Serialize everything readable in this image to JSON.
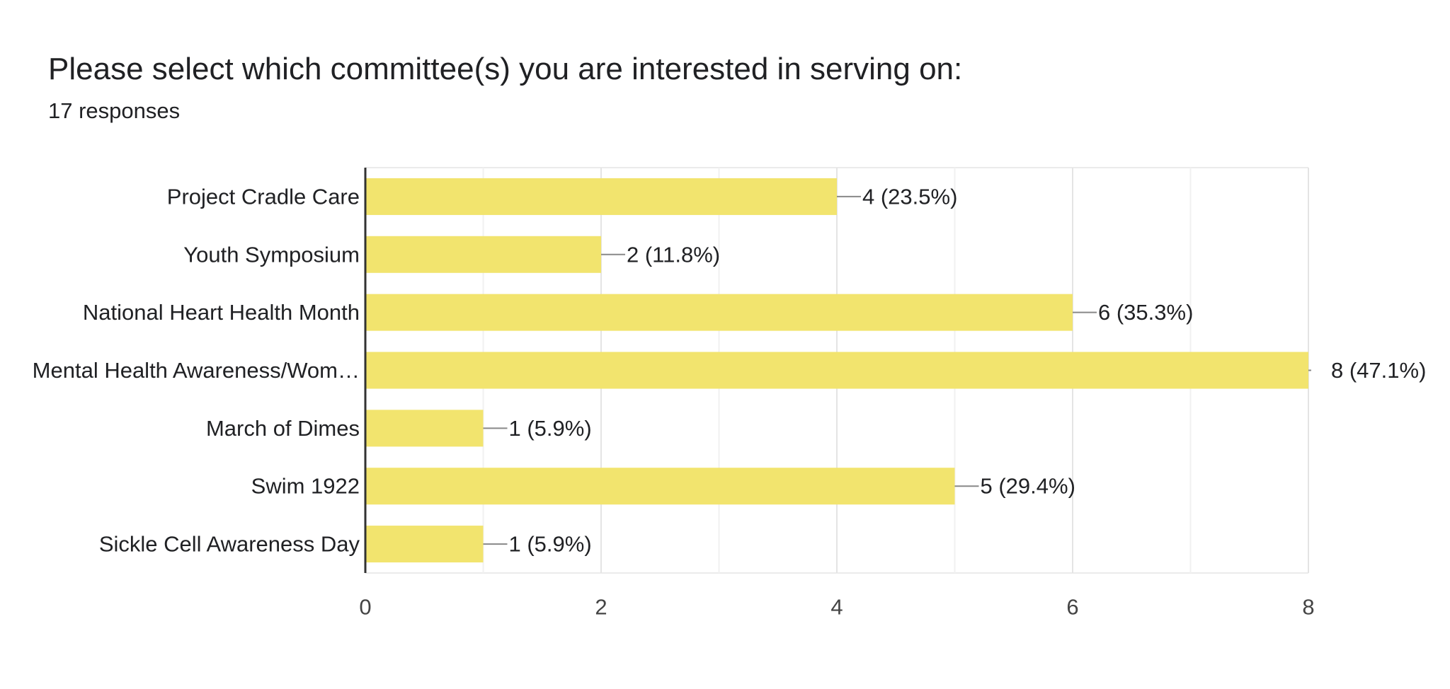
{
  "title": "Please select which committee(s) you are interested in serving on:",
  "subtitle": "17 responses",
  "chart_data": {
    "type": "bar",
    "orientation": "horizontal",
    "title": "Please select which committee(s) you are interested in serving on:",
    "subtitle": "17 responses",
    "categories": [
      "Project Cradle Care",
      "Youth Symposium",
      "National Heart Health Month",
      "Mental Health Awareness/Wom…",
      "March of Dimes",
      "Swim 1922",
      "Sickle Cell Awareness Day"
    ],
    "values": [
      4,
      2,
      6,
      8,
      1,
      5,
      1
    ],
    "data_labels": [
      "4 (23.5%)",
      "2 (11.8%)",
      "6 (35.3%)",
      "8 (47.1%)",
      "1 (5.9%)",
      "5 (29.4%)",
      "1 (5.9%)"
    ],
    "xlim": [
      0,
      8
    ],
    "xticks": [
      0,
      2,
      4,
      6,
      8
    ],
    "xticklabels": [
      "0",
      "2",
      "4",
      "6",
      "8"
    ],
    "grid": true,
    "legend": "none",
    "bar_color": "#f2e46e",
    "gridline_color": "#ebebeb",
    "axis_color": "#333333",
    "leader_color": "#888888"
  }
}
